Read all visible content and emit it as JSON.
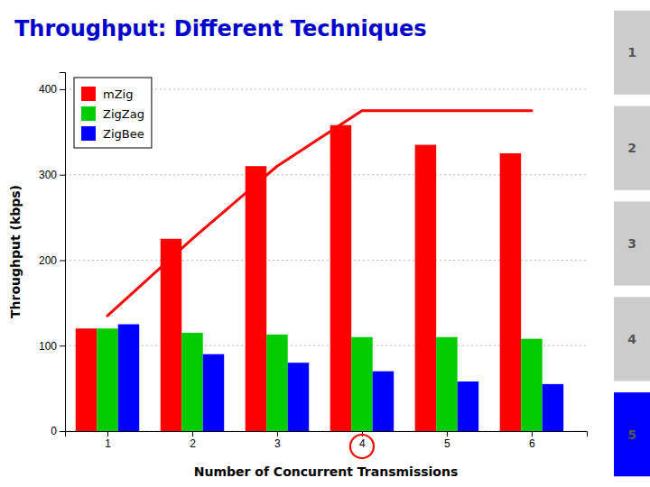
{
  "chart_data": {
    "type": "bar",
    "title": "Throughput: Different Techniques",
    "x_label": "Number of Concurrent Transmissions",
    "y_label": "Throughput (kbps)",
    "x": [
      1,
      2,
      3,
      4,
      5,
      6
    ],
    "xlim": [
      0.5,
      6.65
    ],
    "xticks": [
      1,
      2,
      3,
      4,
      5,
      6
    ],
    "ylim": [
      0,
      420
    ],
    "yticks": [
      0,
      100,
      200,
      300,
      400
    ],
    "series": [
      {
        "name": "mZig",
        "color": "#FF0000",
        "values": [
          120,
          225,
          310,
          358,
          335,
          325
        ]
      },
      {
        "name": "ZigZag",
        "color": "#00CC00",
        "values": [
          120,
          115,
          113,
          110,
          110,
          108
        ]
      },
      {
        "name": "ZigBee",
        "color": "#0000FF",
        "values": [
          125,
          90,
          80,
          70,
          58,
          55
        ]
      },
      {
        "type": "line",
        "color": "#FF0000",
        "values": [
          135,
          225,
          310,
          375,
          375,
          375
        ]
      }
    ],
    "grid": true,
    "legend": "upper left",
    "annotations": [
      {
        "text": "1",
        "color": "#CCCCCC"
      },
      {
        "text": "2",
        "color": "#CCCCCC"
      },
      {
        "text": "3",
        "color": "#CCCCCC"
      },
      {
        "text": "4",
        "color": "#CCCCCC"
      },
      {
        "text": "5",
        "color": "#0000FF"
      },
      {
        "x": 4,
        "color": "#FF0000"
      }
    ]
  }
}
